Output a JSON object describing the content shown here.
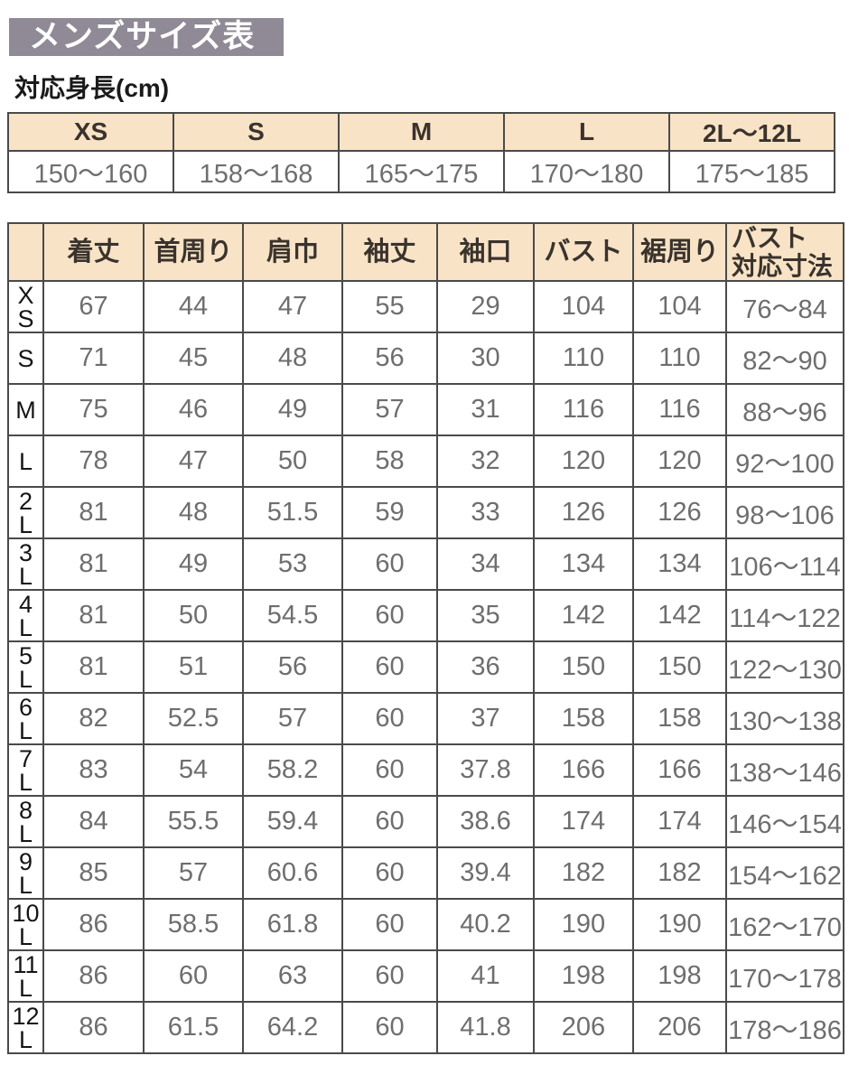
{
  "header": {
    "title": "メンズサイズ表",
    "height_label": "対応身長(cm)"
  },
  "height_table": {
    "sizes": [
      "XS",
      "S",
      "M",
      "L",
      "2L～12L"
    ],
    "ranges": [
      "150～160",
      "158～168",
      "165～175",
      "170～180",
      "175～185"
    ]
  },
  "size_table": {
    "column_headers": [
      "着丈",
      "首周り",
      "肩巾",
      "袖丈",
      "袖口",
      "バスト",
      "裾周り",
      "バスト\n対応寸法"
    ],
    "rows": [
      {
        "size": "XS",
        "values": [
          "67",
          "44",
          "47",
          "55",
          "29",
          "104",
          "104",
          "76～84"
        ]
      },
      {
        "size": "S",
        "values": [
          "71",
          "45",
          "48",
          "56",
          "30",
          "110",
          "110",
          "82～90"
        ]
      },
      {
        "size": "M",
        "values": [
          "75",
          "46",
          "49",
          "57",
          "31",
          "116",
          "116",
          "88～96"
        ]
      },
      {
        "size": "L",
        "values": [
          "78",
          "47",
          "50",
          "58",
          "32",
          "120",
          "120",
          "92～100"
        ]
      },
      {
        "size": "2L",
        "values": [
          "81",
          "48",
          "51.5",
          "59",
          "33",
          "126",
          "126",
          "98～106"
        ]
      },
      {
        "size": "3L",
        "values": [
          "81",
          "49",
          "53",
          "60",
          "34",
          "134",
          "134",
          "106～114"
        ]
      },
      {
        "size": "4L",
        "values": [
          "81",
          "50",
          "54.5",
          "60",
          "35",
          "142",
          "142",
          "114～122"
        ]
      },
      {
        "size": "5L",
        "values": [
          "81",
          "51",
          "56",
          "60",
          "36",
          "150",
          "150",
          "122～130"
        ]
      },
      {
        "size": "6L",
        "values": [
          "82",
          "52.5",
          "57",
          "60",
          "37",
          "158",
          "158",
          "130～138"
        ]
      },
      {
        "size": "7L",
        "values": [
          "83",
          "54",
          "58.2",
          "60",
          "37.8",
          "166",
          "166",
          "138～146"
        ]
      },
      {
        "size": "8L",
        "values": [
          "84",
          "55.5",
          "59.4",
          "60",
          "38.6",
          "174",
          "174",
          "146～154"
        ]
      },
      {
        "size": "9L",
        "values": [
          "85",
          "57",
          "60.6",
          "60",
          "39.4",
          "182",
          "182",
          "154～162"
        ]
      },
      {
        "size": "10L",
        "values": [
          "86",
          "58.5",
          "61.8",
          "60",
          "40.2",
          "190",
          "190",
          "162～170"
        ]
      },
      {
        "size": "11L",
        "values": [
          "86",
          "60",
          "63",
          "60",
          "41",
          "198",
          "198",
          "170～178"
        ]
      },
      {
        "size": "12L",
        "values": [
          "86",
          "61.5",
          "64.2",
          "60",
          "41.8",
          "206",
          "206",
          "178～186"
        ]
      }
    ]
  },
  "colors": {
    "banner_bg": "#8F8A95",
    "header_cell_bg": "#F8E3C6",
    "border": "#4A4A4A",
    "value_text": "#6E6E6E",
    "header_text": "#3A332D"
  }
}
